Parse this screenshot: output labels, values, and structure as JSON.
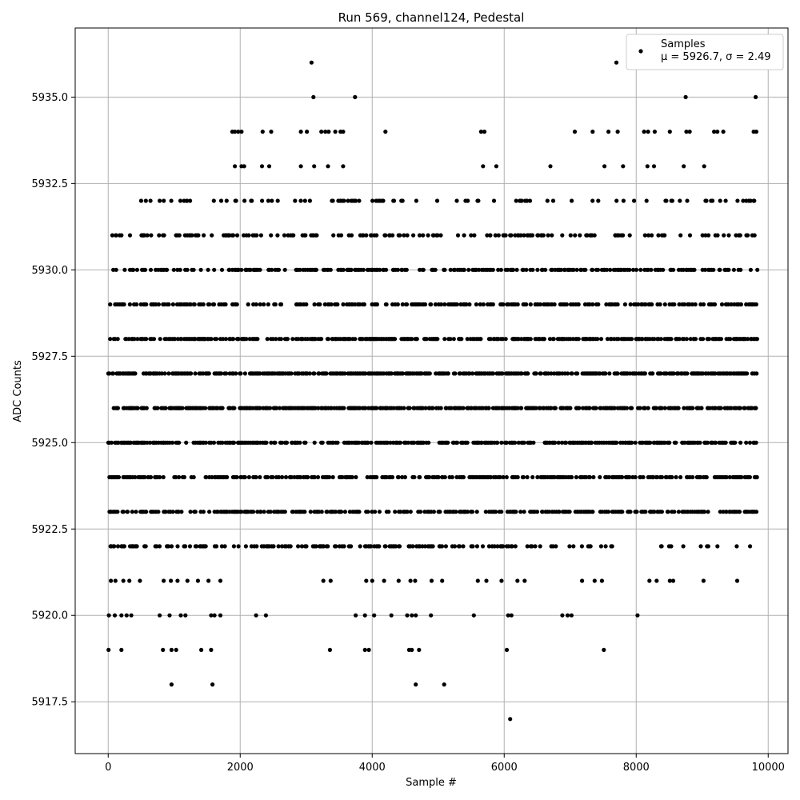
{
  "chart_data": {
    "type": "scatter",
    "title": "Run 569, channel124, Pedestal",
    "xlabel": "Sample #",
    "ylabel": "ADC Counts",
    "xlim": [
      -500,
      10300
    ],
    "ylim": [
      5916.0,
      5937.0
    ],
    "x_ticks": [
      0,
      2000,
      4000,
      6000,
      8000,
      10000
    ],
    "x_tick_labels": [
      "0",
      "2000",
      "4000",
      "6000",
      "8000",
      "10000"
    ],
    "y_ticks": [
      5917.5,
      5920.0,
      5922.5,
      5925.0,
      5927.5,
      5930.0,
      5932.5,
      5935.0
    ],
    "y_tick_labels": [
      "5917.5",
      "5920.0",
      "5922.5",
      "5925.0",
      "5927.5",
      "5930.0",
      "5932.5",
      "5935.0"
    ],
    "grid": true,
    "legend": {
      "placement": "top-right",
      "entries": [
        {
          "label": "Samples",
          "stats": "μ = 5926.7, σ = 2.49"
        }
      ]
    },
    "marker_color": "#000000",
    "x_range_samples": [
      0,
      9830
    ],
    "series": [
      {
        "name": "Samples",
        "dense_levels": [
          5922,
          5923,
          5924,
          5925,
          5926,
          5927,
          5928,
          5929,
          5930,
          5931,
          5932
        ],
        "points": [
          [
            3080,
            5936
          ],
          [
            7700,
            5936
          ],
          [
            3110,
            5935
          ],
          [
            3740,
            5935
          ],
          [
            8750,
            5935
          ],
          [
            9810,
            5935
          ],
          [
            1880,
            5934
          ],
          [
            1920,
            5934
          ],
          [
            1970,
            5934
          ],
          [
            2020,
            5934
          ],
          [
            2340,
            5934
          ],
          [
            2470,
            5934
          ],
          [
            2920,
            5934
          ],
          [
            3010,
            5934
          ],
          [
            3230,
            5934
          ],
          [
            3290,
            5934
          ],
          [
            3340,
            5934
          ],
          [
            3440,
            5934
          ],
          [
            3520,
            5934
          ],
          [
            3560,
            5934
          ],
          [
            4200,
            5934
          ],
          [
            5650,
            5934
          ],
          [
            5700,
            5934
          ],
          [
            7070,
            5934
          ],
          [
            7340,
            5934
          ],
          [
            7580,
            5934
          ],
          [
            7720,
            5934
          ],
          [
            8120,
            5934
          ],
          [
            8180,
            5934
          ],
          [
            8280,
            5934
          ],
          [
            8510,
            5934
          ],
          [
            8760,
            5934
          ],
          [
            8810,
            5934
          ],
          [
            9180,
            5934
          ],
          [
            9230,
            5934
          ],
          [
            9320,
            5934
          ],
          [
            9780,
            5934
          ],
          [
            9820,
            5934
          ],
          [
            1920,
            5933
          ],
          [
            2020,
            5933
          ],
          [
            2060,
            5933
          ],
          [
            2330,
            5933
          ],
          [
            2440,
            5933
          ],
          [
            2920,
            5933
          ],
          [
            3120,
            5933
          ],
          [
            3330,
            5933
          ],
          [
            3560,
            5933
          ],
          [
            5680,
            5933
          ],
          [
            5880,
            5933
          ],
          [
            6700,
            5933
          ],
          [
            7520,
            5933
          ],
          [
            7800,
            5933
          ],
          [
            8170,
            5933
          ],
          [
            8270,
            5933
          ],
          [
            8720,
            5933
          ],
          [
            9030,
            5933
          ],
          [
            120,
            5931
          ],
          [
            200,
            5931
          ],
          [
            330,
            5931
          ],
          [
            520,
            5931
          ],
          [
            650,
            5931
          ],
          [
            830,
            5931
          ],
          [
            1230,
            5931
          ],
          [
            1270,
            5931
          ],
          [
            1750,
            5931
          ],
          [
            3820,
            5931
          ],
          [
            3980,
            5931
          ],
          [
            4400,
            5931
          ],
          [
            4930,
            5931
          ],
          [
            5040,
            5931
          ],
          [
            5300,
            5931
          ],
          [
            5790,
            5931
          ],
          [
            6090,
            5931
          ],
          [
            6300,
            5931
          ],
          [
            120,
            5930
          ],
          [
            250,
            5930
          ],
          [
            380,
            5930
          ],
          [
            540,
            5930
          ],
          [
            720,
            5930
          ],
          [
            880,
            5930
          ],
          [
            1090,
            5930
          ],
          [
            1270,
            5930
          ],
          [
            570,
            5932
          ],
          [
            640,
            5932
          ],
          [
            780,
            5932
          ],
          [
            1190,
            5932
          ],
          [
            1240,
            5932
          ],
          [
            3750,
            5932
          ],
          [
            4060,
            5932
          ],
          [
            4150,
            5932
          ],
          [
            4330,
            5932
          ],
          [
            5,
            5919
          ],
          [
            200,
            5919
          ],
          [
            830,
            5919
          ],
          [
            960,
            5919
          ],
          [
            1030,
            5919
          ],
          [
            1410,
            5919
          ],
          [
            1560,
            5919
          ],
          [
            3360,
            5919
          ],
          [
            3890,
            5919
          ],
          [
            3950,
            5919
          ],
          [
            4560,
            5919
          ],
          [
            4600,
            5919
          ],
          [
            4710,
            5919
          ],
          [
            6040,
            5919
          ],
          [
            7510,
            5919
          ],
          [
            10,
            5920
          ],
          [
            100,
            5920
          ],
          [
            200,
            5920
          ],
          [
            280,
            5920
          ],
          [
            350,
            5920
          ],
          [
            780,
            5920
          ],
          [
            930,
            5920
          ],
          [
            1100,
            5920
          ],
          [
            1170,
            5920
          ],
          [
            1560,
            5920
          ],
          [
            1610,
            5920
          ],
          [
            1700,
            5920
          ],
          [
            2240,
            5920
          ],
          [
            2390,
            5920
          ],
          [
            3750,
            5920
          ],
          [
            3890,
            5920
          ],
          [
            4030,
            5920
          ],
          [
            4290,
            5920
          ],
          [
            4530,
            5920
          ],
          [
            4600,
            5920
          ],
          [
            4660,
            5920
          ],
          [
            4890,
            5920
          ],
          [
            5540,
            5920
          ],
          [
            6060,
            5920
          ],
          [
            6110,
            5920
          ],
          [
            6880,
            5920
          ],
          [
            6960,
            5920
          ],
          [
            7020,
            5920
          ],
          [
            8020,
            5920
          ],
          [
            40,
            5921
          ],
          [
            110,
            5921
          ],
          [
            230,
            5921
          ],
          [
            320,
            5921
          ],
          [
            480,
            5921
          ],
          [
            840,
            5921
          ],
          [
            950,
            5921
          ],
          [
            1050,
            5921
          ],
          [
            1200,
            5921
          ],
          [
            1360,
            5921
          ],
          [
            1520,
            5921
          ],
          [
            1700,
            5921
          ],
          [
            3260,
            5921
          ],
          [
            3370,
            5921
          ],
          [
            3910,
            5921
          ],
          [
            4000,
            5921
          ],
          [
            4180,
            5921
          ],
          [
            4400,
            5921
          ],
          [
            4580,
            5921
          ],
          [
            4650,
            5921
          ],
          [
            4900,
            5921
          ],
          [
            5060,
            5921
          ],
          [
            5600,
            5921
          ],
          [
            5730,
            5921
          ],
          [
            5960,
            5921
          ],
          [
            6200,
            5921
          ],
          [
            6310,
            5921
          ],
          [
            7180,
            5921
          ],
          [
            7370,
            5921
          ],
          [
            7480,
            5921
          ],
          [
            8200,
            5921
          ],
          [
            8310,
            5921
          ],
          [
            8510,
            5921
          ],
          [
            8560,
            5921
          ],
          [
            9020,
            5921
          ],
          [
            9530,
            5921
          ],
          [
            960,
            5918
          ],
          [
            1580,
            5918
          ],
          [
            4660,
            5918
          ],
          [
            5090,
            5918
          ],
          [
            6090,
            5917
          ]
        ]
      }
    ]
  }
}
